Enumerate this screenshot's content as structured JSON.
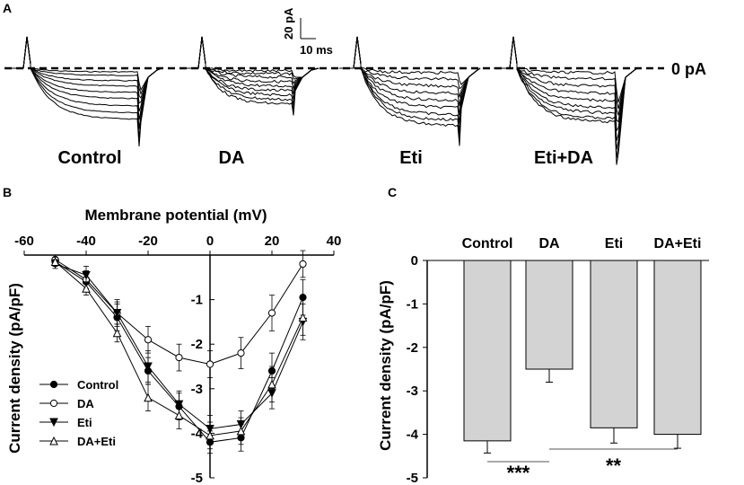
{
  "panels": {
    "a": {
      "letter": "A"
    },
    "b": {
      "letter": "B"
    },
    "c": {
      "letter": "C"
    }
  },
  "traces": {
    "scale_current": "20 pA",
    "scale_time": "10 ms",
    "zero_label": "0 pA",
    "groups": [
      "Control",
      "DA",
      "Eti",
      "Eti+DA"
    ]
  },
  "chart_data": [
    {
      "type": "line",
      "title": "",
      "xlabel": "Membrane potential (mV)",
      "ylabel": "Current density (pA/pF)",
      "xlim": [
        -60,
        40
      ],
      "ylim": [
        -5,
        0
      ],
      "xticks": [
        -60,
        -40,
        -20,
        0,
        20,
        40
      ],
      "yticks": [
        -1,
        -2,
        -3,
        -4,
        -5
      ],
      "x": [
        -50,
        -40,
        -30,
        -20,
        -10,
        0,
        10,
        20,
        30
      ],
      "legend_position": "bottom-left",
      "series": [
        {
          "name": "Control",
          "marker": "filled-circle",
          "values": [
            -0.15,
            -0.6,
            -1.4,
            -2.6,
            -3.4,
            -4.2,
            -4.1,
            -2.6,
            -0.95
          ],
          "errors": [
            0.1,
            0.2,
            0.3,
            0.3,
            0.3,
            0.25,
            0.3,
            0.4,
            0.4
          ]
        },
        {
          "name": "DA",
          "marker": "open-circle",
          "values": [
            -0.1,
            -0.55,
            -1.3,
            -1.9,
            -2.3,
            -2.45,
            -2.2,
            -1.3,
            -0.2
          ],
          "errors": [
            0.1,
            0.2,
            0.3,
            0.3,
            0.3,
            0.3,
            0.35,
            0.4,
            0.3
          ]
        },
        {
          "name": "Eti",
          "marker": "filled-triangle-down",
          "values": [
            -0.2,
            -0.45,
            -1.3,
            -2.5,
            -3.35,
            -3.9,
            -3.8,
            -3.1,
            -1.5
          ],
          "errors": [
            0.1,
            0.2,
            0.25,
            0.35,
            0.3,
            0.3,
            0.3,
            0.35,
            0.4
          ]
        },
        {
          "name": "DA+Eti",
          "marker": "open-triangle-up",
          "values": [
            -0.15,
            -0.75,
            -1.75,
            -3.2,
            -3.6,
            -4.05,
            -3.95,
            -2.9,
            -1.4
          ],
          "errors": [
            0.1,
            0.15,
            0.2,
            0.3,
            0.3,
            0.3,
            0.3,
            0.4,
            0.4
          ]
        }
      ]
    },
    {
      "type": "bar",
      "title": "",
      "xlabel": "",
      "ylabel": "Current density (pA/pF)",
      "categories": [
        "Control",
        "DA",
        "Eti",
        "DA+Eti"
      ],
      "values": [
        -4.15,
        -2.5,
        -3.85,
        -4.0
      ],
      "errors": [
        0.28,
        0.3,
        0.35,
        0.32
      ],
      "ylim": [
        -5,
        0
      ],
      "yticks": [
        0,
        -1,
        -2,
        -3,
        -4,
        -5
      ],
      "significance": [
        {
          "pair": [
            "Control",
            "DA"
          ],
          "label": "***"
        },
        {
          "pair": [
            "DA",
            "DA+Eti"
          ],
          "label": "**"
        }
      ]
    }
  ]
}
